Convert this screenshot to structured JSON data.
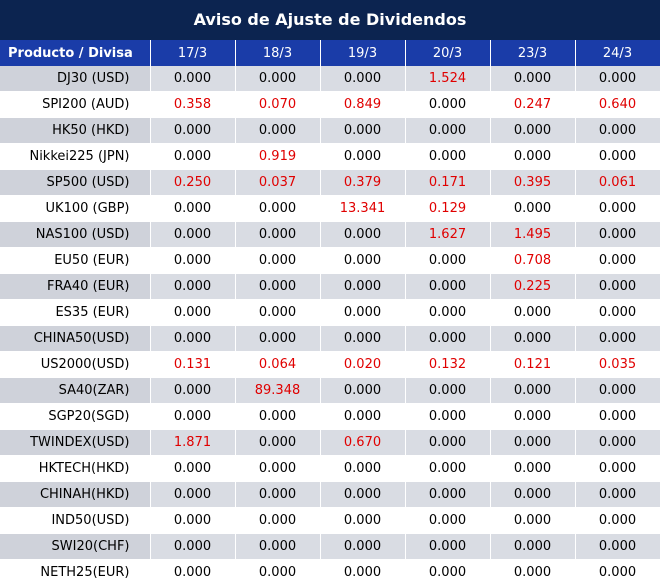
{
  "title": "Aviso de Ajuste de Dividendos",
  "header": [
    "Producto / Divisa",
    "17/3",
    "18/3",
    "19/3",
    "20/3",
    "23/3",
    "24/3"
  ],
  "colors": {
    "title_bg": "#0c2450",
    "header_bg": "#1a3ca8",
    "shade": "#d9dce3",
    "nonzero": "#e00000"
  },
  "rows": [
    {
      "product": "DJ30 (USD)",
      "values": [
        "0.000",
        "0.000",
        "0.000",
        "1.524",
        "0.000",
        "0.000"
      ]
    },
    {
      "product": "SPI200 (AUD)",
      "values": [
        "0.358",
        "0.070",
        "0.849",
        "0.000",
        "0.247",
        "0.640"
      ]
    },
    {
      "product": "HK50 (HKD)",
      "values": [
        "0.000",
        "0.000",
        "0.000",
        "0.000",
        "0.000",
        "0.000"
      ]
    },
    {
      "product": "Nikkei225 (JPN)",
      "values": [
        "0.000",
        "0.919",
        "0.000",
        "0.000",
        "0.000",
        "0.000"
      ]
    },
    {
      "product": "SP500 (USD)",
      "values": [
        "0.250",
        "0.037",
        "0.379",
        "0.171",
        "0.395",
        "0.061"
      ]
    },
    {
      "product": "UK100 (GBP)",
      "values": [
        "0.000",
        "0.000",
        "13.341",
        "0.129",
        "0.000",
        "0.000"
      ]
    },
    {
      "product": "NAS100 (USD)",
      "values": [
        "0.000",
        "0.000",
        "0.000",
        "1.627",
        "1.495",
        "0.000"
      ]
    },
    {
      "product": "EU50 (EUR)",
      "values": [
        "0.000",
        "0.000",
        "0.000",
        "0.000",
        "0.708",
        "0.000"
      ]
    },
    {
      "product": "FRA40 (EUR)",
      "values": [
        "0.000",
        "0.000",
        "0.000",
        "0.000",
        "0.225",
        "0.000"
      ]
    },
    {
      "product": "ES35 (EUR)",
      "values": [
        "0.000",
        "0.000",
        "0.000",
        "0.000",
        "0.000",
        "0.000"
      ]
    },
    {
      "product": "CHINA50(USD)",
      "values": [
        "0.000",
        "0.000",
        "0.000",
        "0.000",
        "0.000",
        "0.000"
      ]
    },
    {
      "product": "US2000(USD)",
      "values": [
        "0.131",
        "0.064",
        "0.020",
        "0.132",
        "0.121",
        "0.035"
      ]
    },
    {
      "product": "SA40(ZAR)",
      "values": [
        "0.000",
        "89.348",
        "0.000",
        "0.000",
        "0.000",
        "0.000"
      ]
    },
    {
      "product": "SGP20(SGD)",
      "values": [
        "0.000",
        "0.000",
        "0.000",
        "0.000",
        "0.000",
        "0.000"
      ]
    },
    {
      "product": "TWINDEX(USD)",
      "values": [
        "1.871",
        "0.000",
        "0.670",
        "0.000",
        "0.000",
        "0.000"
      ]
    },
    {
      "product": "HKTECH(HKD)",
      "values": [
        "0.000",
        "0.000",
        "0.000",
        "0.000",
        "0.000",
        "0.000"
      ]
    },
    {
      "product": "CHINAH(HKD)",
      "values": [
        "0.000",
        "0.000",
        "0.000",
        "0.000",
        "0.000",
        "0.000"
      ]
    },
    {
      "product": "IND50(USD)",
      "values": [
        "0.000",
        "0.000",
        "0.000",
        "0.000",
        "0.000",
        "0.000"
      ]
    },
    {
      "product": "SWI20(CHF)",
      "values": [
        "0.000",
        "0.000",
        "0.000",
        "0.000",
        "0.000",
        "0.000"
      ]
    },
    {
      "product": "NETH25(EUR)",
      "values": [
        "0.000",
        "0.000",
        "0.000",
        "0.000",
        "0.000",
        "0.000"
      ]
    }
  ]
}
